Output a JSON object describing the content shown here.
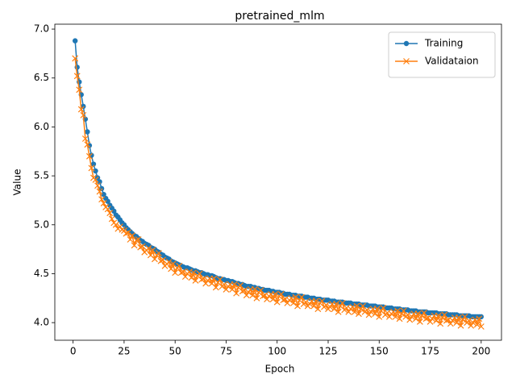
{
  "chart_data": {
    "type": "line",
    "title": "pretrained_mlm",
    "x_label": "Epoch",
    "y_label": "Value",
    "x": [
      1,
      2,
      3,
      4,
      5,
      6,
      7,
      8,
      9,
      10,
      11,
      12,
      13,
      14,
      15,
      16,
      17,
      18,
      19,
      20,
      21,
      22,
      23,
      24,
      25,
      26,
      27,
      28,
      29,
      30,
      31,
      32,
      33,
      34,
      35,
      36,
      37,
      38,
      39,
      40,
      41,
      42,
      43,
      44,
      45,
      46,
      47,
      48,
      49,
      50,
      51,
      52,
      53,
      54,
      55,
      56,
      57,
      58,
      59,
      60,
      61,
      62,
      63,
      64,
      65,
      66,
      67,
      68,
      69,
      70,
      71,
      72,
      73,
      74,
      75,
      76,
      77,
      78,
      79,
      80,
      81,
      82,
      83,
      84,
      85,
      86,
      87,
      88,
      89,
      90,
      91,
      92,
      93,
      94,
      95,
      96,
      97,
      98,
      99,
      100,
      101,
      102,
      103,
      104,
      105,
      106,
      107,
      108,
      109,
      110,
      111,
      112,
      113,
      114,
      115,
      116,
      117,
      118,
      119,
      120,
      121,
      122,
      123,
      124,
      125,
      126,
      127,
      128,
      129,
      130,
      131,
      132,
      133,
      134,
      135,
      136,
      137,
      138,
      139,
      140,
      141,
      142,
      143,
      144,
      145,
      146,
      147,
      148,
      149,
      150,
      151,
      152,
      153,
      154,
      155,
      156,
      157,
      158,
      159,
      160,
      161,
      162,
      163,
      164,
      165,
      166,
      167,
      168,
      169,
      170,
      171,
      172,
      173,
      174,
      175,
      176,
      177,
      178,
      179,
      180,
      181,
      182,
      183,
      184,
      185,
      186,
      187,
      188,
      189,
      190,
      191,
      192,
      193,
      194,
      195,
      196,
      197,
      198,
      199,
      200
    ],
    "series": [
      {
        "name": "Training",
        "color": "#1f77b4",
        "marker": "circle",
        "values": [
          6.88,
          6.61,
          6.46,
          6.33,
          6.21,
          6.08,
          5.95,
          5.81,
          5.71,
          5.62,
          5.55,
          5.48,
          5.44,
          5.37,
          5.31,
          5.27,
          5.24,
          5.2,
          5.17,
          5.14,
          5.1,
          5.08,
          5.05,
          5.02,
          5.0,
          4.97,
          4.95,
          4.93,
          4.91,
          4.89,
          4.88,
          4.86,
          4.84,
          4.83,
          4.81,
          4.8,
          4.79,
          4.77,
          4.76,
          4.75,
          4.73,
          4.72,
          4.7,
          4.69,
          4.67,
          4.66,
          4.65,
          4.63,
          4.62,
          4.61,
          4.6,
          4.59,
          4.58,
          4.57,
          4.56,
          4.56,
          4.55,
          4.54,
          4.53,
          4.53,
          4.52,
          4.51,
          4.51,
          4.5,
          4.49,
          4.49,
          4.48,
          4.48,
          4.47,
          4.46,
          4.45,
          4.45,
          4.44,
          4.44,
          4.43,
          4.43,
          4.42,
          4.42,
          4.41,
          4.4,
          4.4,
          4.39,
          4.39,
          4.38,
          4.37,
          4.37,
          4.37,
          4.36,
          4.36,
          4.35,
          4.35,
          4.34,
          4.34,
          4.33,
          4.33,
          4.33,
          4.32,
          4.32,
          4.31,
          4.31,
          4.31,
          4.3,
          4.3,
          4.29,
          4.29,
          4.29,
          4.28,
          4.28,
          4.28,
          4.27,
          4.27,
          4.27,
          4.26,
          4.26,
          4.26,
          4.25,
          4.25,
          4.25,
          4.24,
          4.24,
          4.24,
          4.23,
          4.23,
          4.23,
          4.23,
          4.22,
          4.22,
          4.22,
          4.21,
          4.21,
          4.21,
          4.21,
          4.2,
          4.2,
          4.2,
          4.2,
          4.19,
          4.19,
          4.19,
          4.19,
          4.18,
          4.18,
          4.18,
          4.18,
          4.17,
          4.17,
          4.17,
          4.17,
          4.16,
          4.16,
          4.16,
          4.16,
          4.15,
          4.15,
          4.15,
          4.15,
          4.14,
          4.14,
          4.14,
          4.14,
          4.13,
          4.13,
          4.13,
          4.13,
          4.12,
          4.12,
          4.12,
          4.12,
          4.11,
          4.11,
          4.11,
          4.11,
          4.11,
          4.1,
          4.1,
          4.1,
          4.1,
          4.1,
          4.09,
          4.09,
          4.09,
          4.09,
          4.09,
          4.08,
          4.08,
          4.08,
          4.08,
          4.08,
          4.07,
          4.07,
          4.07,
          4.07,
          4.07,
          4.07,
          4.06,
          4.06,
          4.06,
          4.06,
          4.06,
          4.06
        ]
      },
      {
        "name": "Validataion",
        "color": "#ff7f0e",
        "marker": "x",
        "values": [
          6.7,
          6.52,
          6.38,
          6.18,
          6.12,
          5.88,
          5.82,
          5.7,
          5.58,
          5.48,
          5.46,
          5.4,
          5.34,
          5.26,
          5.22,
          5.18,
          5.16,
          5.12,
          5.06,
          5.02,
          5.0,
          4.96,
          4.98,
          4.95,
          4.94,
          4.91,
          4.92,
          4.85,
          4.89,
          4.79,
          4.84,
          4.85,
          4.77,
          4.78,
          4.72,
          4.74,
          4.76,
          4.69,
          4.74,
          4.65,
          4.69,
          4.71,
          4.63,
          4.64,
          4.58,
          4.6,
          4.62,
          4.55,
          4.6,
          4.51,
          4.56,
          4.58,
          4.51,
          4.52,
          4.47,
          4.5,
          4.52,
          4.46,
          4.51,
          4.43,
          4.48,
          4.5,
          4.44,
          4.45,
          4.4,
          4.43,
          4.45,
          4.4,
          4.45,
          4.36,
          4.41,
          4.44,
          4.37,
          4.39,
          4.34,
          4.37,
          4.39,
          4.34,
          4.39,
          4.3,
          4.36,
          4.38,
          4.32,
          4.33,
          4.28,
          4.31,
          4.34,
          4.28,
          4.34,
          4.25,
          4.31,
          4.33,
          4.27,
          4.28,
          4.24,
          4.27,
          4.29,
          4.24,
          4.29,
          4.21,
          4.27,
          4.29,
          4.23,
          4.24,
          4.2,
          4.23,
          4.25,
          4.2,
          4.26,
          4.17,
          4.23,
          4.26,
          4.19,
          4.21,
          4.17,
          4.19,
          4.22,
          4.17,
          4.22,
          4.14,
          4.2,
          4.22,
          4.16,
          4.18,
          4.14,
          4.16,
          4.19,
          4.14,
          4.19,
          4.11,
          4.17,
          4.2,
          4.13,
          4.15,
          4.11,
          4.14,
          4.16,
          4.11,
          4.17,
          4.09,
          4.14,
          4.17,
          4.11,
          4.13,
          4.08,
          4.11,
          4.14,
          4.09,
          4.14,
          4.06,
          4.12,
          4.15,
          4.08,
          4.1,
          4.06,
          4.09,
          4.11,
          4.06,
          4.12,
          4.04,
          4.09,
          4.12,
          4.06,
          4.08,
          4.03,
          4.06,
          4.09,
          4.04,
          4.09,
          4.01,
          4.07,
          4.1,
          4.04,
          4.05,
          4.01,
          4.04,
          4.07,
          4.02,
          4.07,
          3.99,
          4.05,
          4.08,
          4.02,
          4.03,
          3.99,
          4.02,
          4.05,
          4.0,
          4.05,
          3.97,
          4.03,
          4.06,
          4.0,
          4.02,
          3.97,
          4.0,
          4.03,
          3.98,
          4.04,
          3.96
        ]
      }
    ],
    "xlim": [
      -8.95,
      209.95
    ],
    "xticks": [
      0,
      25,
      50,
      75,
      100,
      125,
      150,
      175,
      200
    ],
    "ylim": [
      3.82,
      7.05
    ],
    "yticks": [
      {
        "value": 4,
        "label": "4.0"
      },
      4.5,
      {
        "value": 5,
        "label": "5.0"
      },
      5.5,
      {
        "value": 6,
        "label": "6.0"
      },
      6.5,
      {
        "value": 7,
        "label": "7.0"
      }
    ],
    "legend": "upper right"
  }
}
